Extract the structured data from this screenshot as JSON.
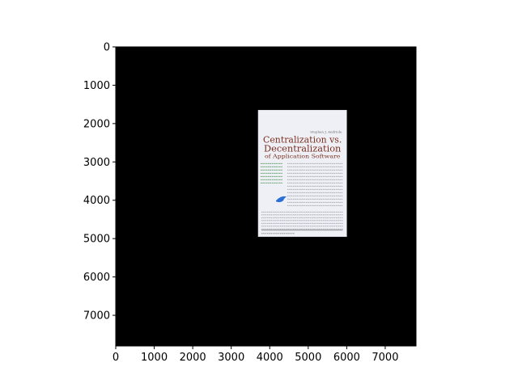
{
  "chart_data": {
    "type": "heatmap",
    "title": "",
    "xlabel": "",
    "ylabel": "",
    "xlim": [
      0,
      7800
    ],
    "ylim": [
      7800,
      0
    ],
    "x_ticks": [
      0,
      1000,
      2000,
      3000,
      4000,
      5000,
      6000,
      7000
    ],
    "y_ticks": [
      0,
      1000,
      2000,
      3000,
      4000,
      5000,
      6000,
      7000
    ],
    "x_tick_labels": [
      "0",
      "1000",
      "2000",
      "3000",
      "4000",
      "5000",
      "6000",
      "7000"
    ],
    "y_tick_labels": [
      "0",
      "1000",
      "2000",
      "3000",
      "4000",
      "5000",
      "6000",
      "7000"
    ],
    "grid": false,
    "background_color": "#000000",
    "embedded_image": {
      "x_range": [
        3700,
        6000
      ],
      "y_range": [
        1650,
        4950
      ],
      "page_color": "#eef0f6",
      "title_color": "#7a2f1f",
      "header_text": "Stephen J. Andriole",
      "title_line1": "Centralization vs.",
      "title_line2": "Decentralization",
      "title_line3": "of Application Software"
    }
  }
}
